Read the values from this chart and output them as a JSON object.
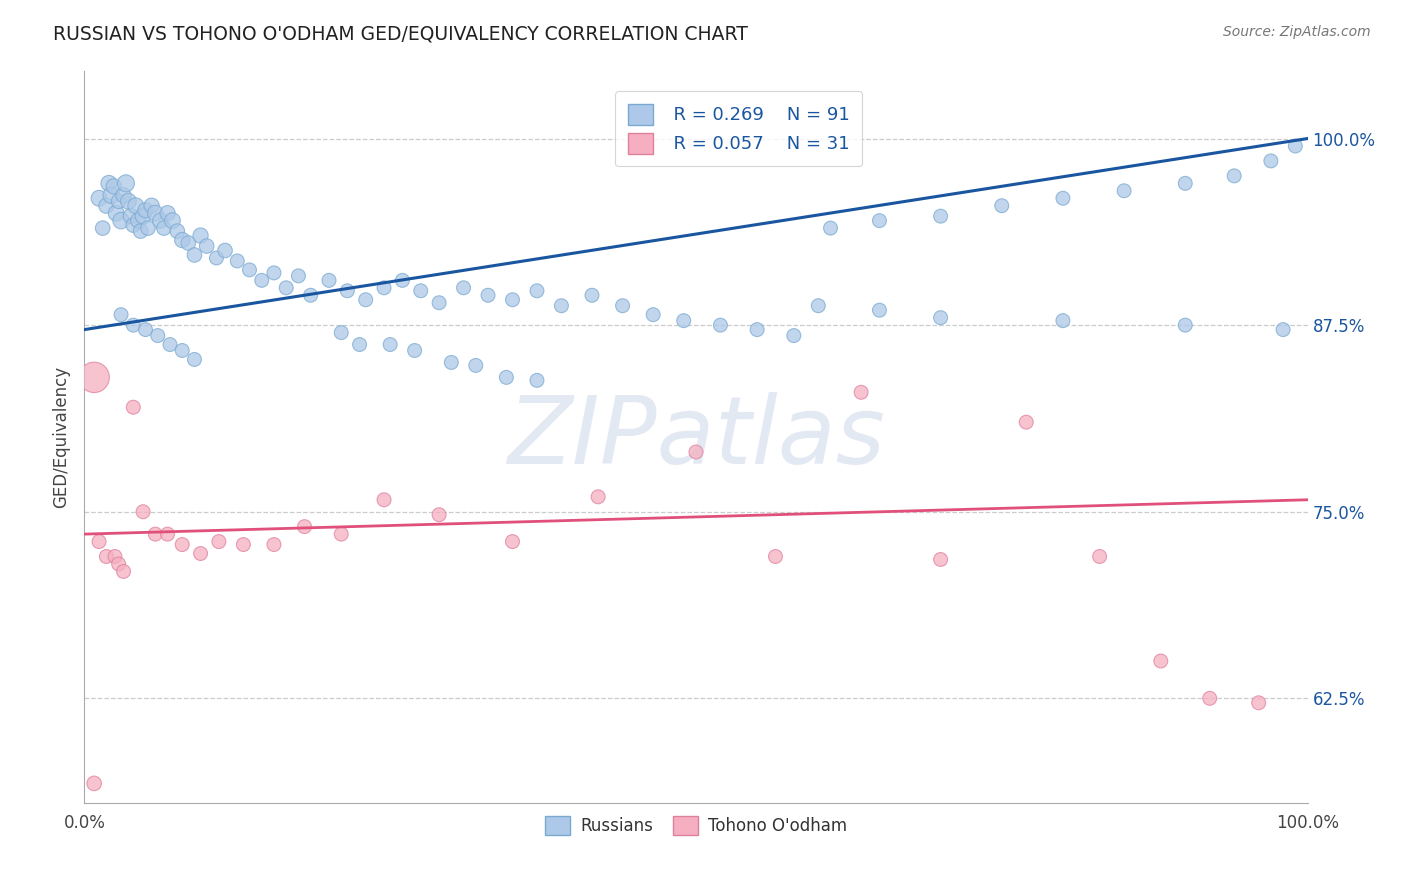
{
  "title": "RUSSIAN VS TOHONO O'ODHAM GED/EQUIVALENCY CORRELATION CHART",
  "source": "Source: ZipAtlas.com",
  "ylabel": "GED/Equivalency",
  "background_color": "#ffffff",
  "russian_color": "#adc8e8",
  "russian_edge_color": "#7aaad0",
  "russian_line_color": "#1a56a0",
  "tohono_color": "#f5afc0",
  "tohono_edge_color": "#e080a0",
  "tohono_line_color": "#e0507a",
  "legend_text_color": "#1a56a0",
  "ytick_color": "#1a56a0",
  "grid_color": "#cccccc",
  "watermark_color": "#ccd8e8",
  "xlim": [
    0.0,
    1.0
  ],
  "ylim": [
    0.555,
    1.045
  ],
  "yticks": [
    0.625,
    0.75,
    0.875,
    1.0
  ],
  "ytick_labels": [
    "62.5%",
    "75.0%",
    "87.5%",
    "100.0%"
  ],
  "russian_line_x": [
    0.0,
    1.0
  ],
  "russian_line_y": [
    0.872,
    1.0
  ],
  "tohono_line_x": [
    0.0,
    1.0
  ],
  "tohono_line_y": [
    0.735,
    0.758
  ],
  "legend_r1": "R = 0.269",
  "legend_n1": "N = 91",
  "legend_r2": "R = 0.057",
  "legend_n2": "N = 31",
  "label_russians": "Russians",
  "label_tohono": "Tohono O'odham",
  "watermark": "ZIPatlas",
  "russian_x": [
    0.012,
    0.015,
    0.018,
    0.02,
    0.022,
    0.024,
    0.026,
    0.028,
    0.03,
    0.032,
    0.034,
    0.036,
    0.038,
    0.04,
    0.042,
    0.044,
    0.046,
    0.048,
    0.05,
    0.052,
    0.055,
    0.058,
    0.062,
    0.065,
    0.068,
    0.072,
    0.076,
    0.08,
    0.085,
    0.09,
    0.095,
    0.1,
    0.108,
    0.115,
    0.125,
    0.135,
    0.145,
    0.155,
    0.165,
    0.175,
    0.185,
    0.2,
    0.215,
    0.23,
    0.245,
    0.26,
    0.275,
    0.29,
    0.31,
    0.33,
    0.35,
    0.37,
    0.39,
    0.415,
    0.44,
    0.465,
    0.49,
    0.52,
    0.55,
    0.58,
    0.21,
    0.225,
    0.25,
    0.27,
    0.3,
    0.32,
    0.345,
    0.37,
    0.03,
    0.04,
    0.05,
    0.06,
    0.07,
    0.08,
    0.09,
    0.61,
    0.65,
    0.7,
    0.75,
    0.8,
    0.85,
    0.9,
    0.94,
    0.97,
    0.99,
    0.6,
    0.65,
    0.7,
    0.8,
    0.9,
    0.98
  ],
  "russian_y": [
    0.96,
    0.94,
    0.955,
    0.97,
    0.962,
    0.968,
    0.95,
    0.958,
    0.945,
    0.962,
    0.97,
    0.958,
    0.948,
    0.942,
    0.955,
    0.945,
    0.938,
    0.948,
    0.952,
    0.94,
    0.955,
    0.95,
    0.945,
    0.94,
    0.95,
    0.945,
    0.938,
    0.932,
    0.93,
    0.922,
    0.935,
    0.928,
    0.92,
    0.925,
    0.918,
    0.912,
    0.905,
    0.91,
    0.9,
    0.908,
    0.895,
    0.905,
    0.898,
    0.892,
    0.9,
    0.905,
    0.898,
    0.89,
    0.9,
    0.895,
    0.892,
    0.898,
    0.888,
    0.895,
    0.888,
    0.882,
    0.878,
    0.875,
    0.872,
    0.868,
    0.87,
    0.862,
    0.862,
    0.858,
    0.85,
    0.848,
    0.84,
    0.838,
    0.882,
    0.875,
    0.872,
    0.868,
    0.862,
    0.858,
    0.852,
    0.94,
    0.945,
    0.948,
    0.955,
    0.96,
    0.965,
    0.97,
    0.975,
    0.985,
    0.995,
    0.888,
    0.885,
    0.88,
    0.878,
    0.875,
    0.872
  ],
  "russian_sizes": [
    130,
    110,
    120,
    130,
    140,
    120,
    130,
    110,
    140,
    120,
    150,
    130,
    120,
    110,
    130,
    120,
    110,
    130,
    120,
    110,
    120,
    130,
    120,
    110,
    120,
    130,
    110,
    120,
    110,
    110,
    120,
    110,
    100,
    110,
    100,
    100,
    100,
    100,
    100,
    100,
    100,
    100,
    100,
    100,
    100,
    100,
    100,
    100,
    100,
    100,
    100,
    100,
    100,
    100,
    100,
    100,
    100,
    100,
    100,
    100,
    100,
    100,
    100,
    100,
    100,
    100,
    100,
    100,
    100,
    100,
    100,
    100,
    100,
    100,
    100,
    100,
    100,
    100,
    100,
    100,
    100,
    100,
    100,
    100,
    100,
    100,
    100,
    100,
    100,
    100,
    100
  ],
  "tohono_x": [
    0.008,
    0.012,
    0.018,
    0.025,
    0.028,
    0.032,
    0.04,
    0.048,
    0.058,
    0.068,
    0.08,
    0.095,
    0.11,
    0.13,
    0.155,
    0.18,
    0.21,
    0.245,
    0.29,
    0.35,
    0.42,
    0.5,
    0.565,
    0.635,
    0.7,
    0.77,
    0.83,
    0.88,
    0.92,
    0.96,
    0.008
  ],
  "tohono_y": [
    0.568,
    0.73,
    0.72,
    0.72,
    0.715,
    0.71,
    0.82,
    0.75,
    0.735,
    0.735,
    0.728,
    0.722,
    0.73,
    0.728,
    0.728,
    0.74,
    0.735,
    0.758,
    0.748,
    0.73,
    0.76,
    0.79,
    0.72,
    0.83,
    0.718,
    0.81,
    0.72,
    0.65,
    0.625,
    0.622,
    0.84
  ],
  "tohono_sizes": [
    110,
    100,
    100,
    100,
    100,
    100,
    100,
    100,
    100,
    100,
    100,
    100,
    100,
    100,
    100,
    100,
    100,
    100,
    100,
    100,
    100,
    100,
    100,
    100,
    100,
    100,
    100,
    100,
    100,
    100,
    480
  ]
}
